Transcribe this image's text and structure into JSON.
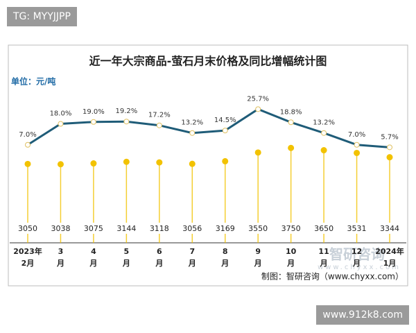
{
  "overlay_top": "TG: MYYJJPP",
  "overlay_bottom": "www.912k8.com",
  "chart_data": {
    "type": "combo",
    "title": "近一年大宗商品-萤石月末价格及同比增幅统计图",
    "unit": "单位：元/吨",
    "source": "制图：智研咨询（www.chyxx.com）",
    "watermark": "智研咨询",
    "watermark_url": "www.chyxx.com",
    "categories": [
      "2023年\n2月",
      "3\n月",
      "4\n月",
      "5\n月",
      "6\n月",
      "7\n月",
      "8\n月",
      "9\n月",
      "10\n月",
      "11\n月",
      "12\n月",
      "2024年\n1月"
    ],
    "ylim": [
      0,
      4000
    ],
    "y2lim": [
      0,
      30
    ],
    "series": [
      {
        "type": "lollipop",
        "color": "#f2c200",
        "values": [
          3050,
          3038,
          3075,
          3144,
          3118,
          3056,
          3169,
          3550,
          3750,
          3650,
          3531,
          3344
        ]
      },
      {
        "type": "line",
        "axis": "y2",
        "color": "#1f5c78",
        "values": [
          7.0,
          18.0,
          19.0,
          19.2,
          17.2,
          13.2,
          14.5,
          25.7,
          18.8,
          13.2,
          7.0,
          5.7
        ],
        "value_labels": [
          "7.0%",
          "18.0%",
          "19.0%",
          "19.2%",
          "17.2%",
          "13.2%",
          "14.5%",
          "25.7%",
          "18.8%",
          "13.2%",
          "7.0%",
          "5.7%"
        ]
      }
    ]
  }
}
